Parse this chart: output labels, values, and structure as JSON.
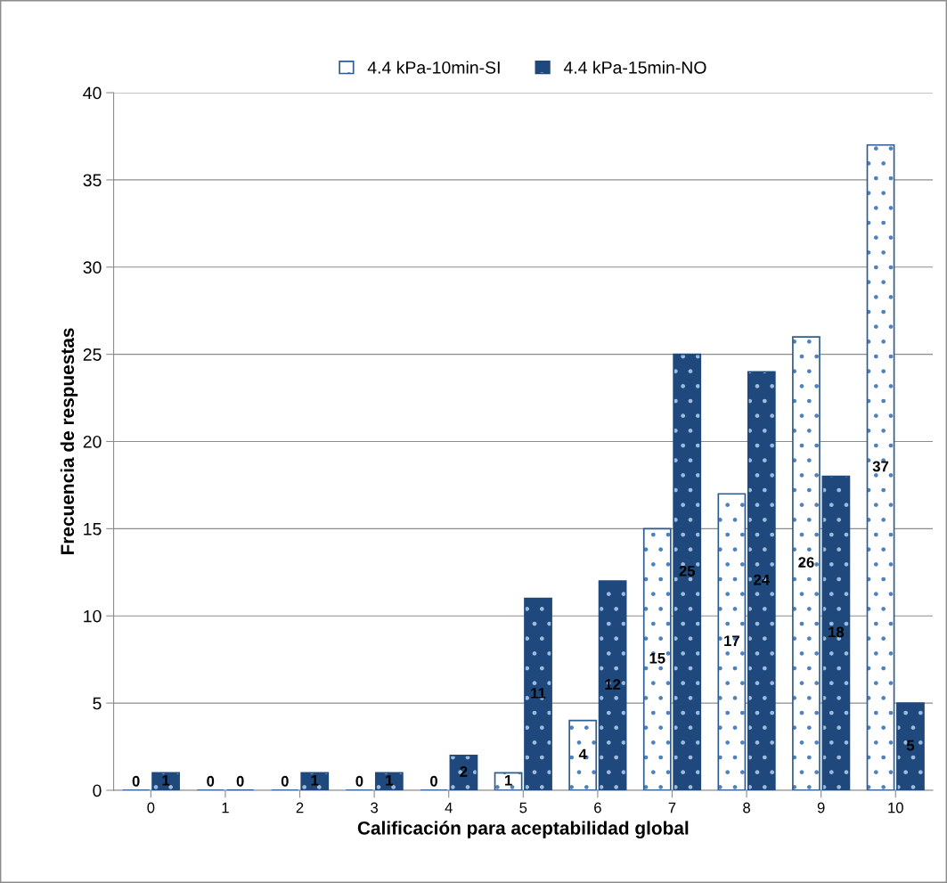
{
  "chart_data": {
    "type": "bar",
    "xlabel": "Calificación para aceptabilidad global",
    "ylabel": "Frecuencia de respuestas",
    "categories": [
      "0",
      "1",
      "2",
      "3",
      "4",
      "5",
      "6",
      "7",
      "8",
      "9",
      "10"
    ],
    "series": [
      {
        "name": "4.4 kPa-10min-SI",
        "color": "#2e5c8e",
        "values": [
          0,
          0,
          0,
          0,
          0,
          1,
          4,
          15,
          17,
          26,
          37
        ]
      },
      {
        "name": "4.4 kPa-15min-NO",
        "color": "#1f497d",
        "values": [
          1,
          0,
          1,
          1,
          2,
          11,
          12,
          25,
          24,
          18,
          5
        ]
      }
    ],
    "ylim": [
      0,
      40
    ],
    "yticks": [
      0,
      5,
      10,
      15,
      20,
      25,
      30,
      35,
      40
    ],
    "grid": "y",
    "legend": "top",
    "data_labels": true
  }
}
